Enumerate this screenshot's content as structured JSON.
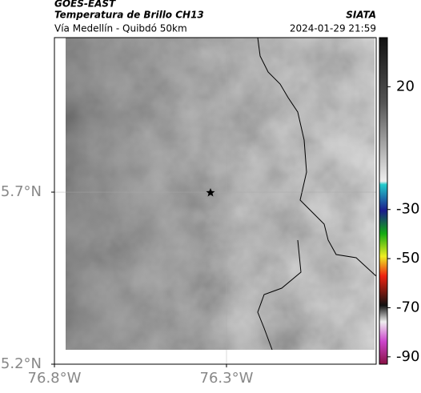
{
  "header": {
    "satellite": "GOES-EAST",
    "product": "Temperatura de Brillo CH13",
    "source": "SIATA",
    "region": "Vía Medellín - Quibdó 50km",
    "timestamp": "2024-01-29 21:59"
  },
  "map": {
    "xlim": [
      -76.8,
      -75.865
    ],
    "ylim": [
      5.2,
      6.149
    ],
    "xticks": [
      {
        "value": -76.8,
        "label": "76.8°W"
      },
      {
        "value": -76.3,
        "label": "76.3°W"
      }
    ],
    "yticks": [
      {
        "value": 5.2,
        "label": "5.2°N"
      },
      {
        "value": 5.7,
        "label": "5.7°N"
      }
    ],
    "grid": true
  },
  "colorbar": {
    "lim": [
      -93,
      40
    ],
    "ticks": [
      20,
      -30,
      -50,
      -70,
      -90
    ]
  }
}
